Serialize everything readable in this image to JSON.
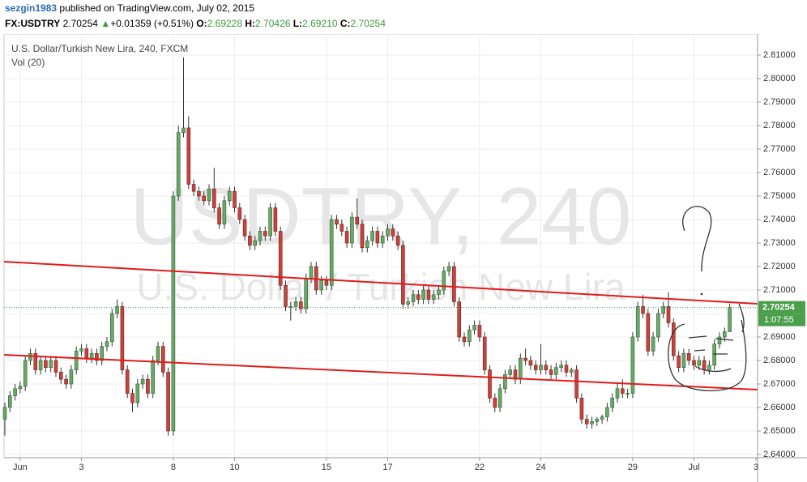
{
  "header": {
    "user": "sezgin1983",
    "published": "published on TradingView.com, July 02, 2015",
    "symbol": "FX:USDTRY",
    "last": "2.70254",
    "arrow": "▲",
    "change": "+0.01359 (+0.51%)",
    "o_label": "O:",
    "o": "2.69228",
    "h_label": "H:",
    "h": "2.70426",
    "l_label": "L:",
    "l": "2.69210",
    "c_label": "C:",
    "c": "2.70254"
  },
  "chart_data": {
    "type": "candlestick",
    "title": "U.S. Dollar/Turkish New Lira, 240, FXCM",
    "subtitle": "Vol (20)",
    "watermark": "USDTRY, 240",
    "watermark_sub": "U.S. Dollar / Turkish New Lira",
    "price_label": "2.70254",
    "countdown": "1:07:55",
    "up_color": "#6aa86a",
    "down_color": "#c9433e",
    "ylim": [
      2.63862,
      2.81897
    ],
    "yticks": [
      {
        "value": 2.64,
        "label": "2.64000"
      },
      {
        "value": 2.65,
        "label": "2.65000"
      },
      {
        "value": 2.66,
        "label": "2.66000"
      },
      {
        "value": 2.67,
        "label": "2.67000"
      },
      {
        "value": 2.68,
        "label": "2.68000"
      },
      {
        "value": 2.69,
        "label": "2.69000"
      },
      {
        "value": 2.7,
        "label": "2.70000"
      },
      {
        "value": 2.71,
        "label": "2.71000"
      },
      {
        "value": 2.72,
        "label": "2.72000"
      },
      {
        "value": 2.73,
        "label": "2.73000"
      },
      {
        "value": 2.74,
        "label": "2.74000"
      },
      {
        "value": 2.75,
        "label": "2.75000"
      },
      {
        "value": 2.76,
        "label": "2.76000"
      },
      {
        "value": 2.77,
        "label": "2.77000"
      },
      {
        "value": 2.78,
        "label": "2.78000"
      },
      {
        "value": 2.79,
        "label": "2.79000"
      },
      {
        "value": 2.8,
        "label": "2.80000"
      },
      {
        "value": 2.81,
        "label": "2.81000"
      }
    ],
    "xticks": [
      {
        "value": 3,
        "label": "Jun"
      },
      {
        "value": 15,
        "label": "3"
      },
      {
        "value": 33,
        "label": "8"
      },
      {
        "value": 45,
        "label": "10"
      },
      {
        "value": 63,
        "label": "15"
      },
      {
        "value": 75,
        "label": "17"
      },
      {
        "value": 93,
        "label": "22"
      },
      {
        "value": 105,
        "label": "24"
      },
      {
        "value": 123,
        "label": "29"
      },
      {
        "value": 135,
        "label": "Jul"
      },
      {
        "value": 149,
        "label": "3"
      }
    ],
    "grid": true,
    "open": [
      2.655,
      2.66,
      2.665,
      2.668,
      2.669,
      2.68,
      2.683,
      2.676,
      2.68,
      2.677,
      2.68,
      2.675,
      2.672,
      2.67,
      2.676,
      2.684,
      2.685,
      2.681,
      2.683,
      2.68,
      2.686,
      2.688,
      2.7,
      2.703,
      2.676,
      2.666,
      2.662,
      2.67,
      2.672,
      2.666,
      2.68,
      2.686,
      2.675,
      2.65,
      2.75,
      2.777,
      2.779,
      2.755,
      2.752,
      2.75,
      2.748,
      2.753,
      2.745,
      2.738,
      2.748,
      2.752,
      2.745,
      2.74,
      2.733,
      2.729,
      2.731,
      2.735,
      2.733,
      2.745,
      2.735,
      2.712,
      2.703,
      2.703,
      2.705,
      2.702,
      2.715,
      2.72,
      2.71,
      2.714,
      2.712,
      2.74,
      2.738,
      2.735,
      2.73,
      2.741,
      2.738,
      2.728,
      2.731,
      2.735,
      2.73,
      2.733,
      2.736,
      2.733,
      2.729,
      2.704,
      2.705,
      2.708,
      2.706,
      2.71,
      2.706,
      2.708,
      2.71,
      2.718,
      2.72,
      2.705,
      2.69,
      2.688,
      2.693,
      2.695,
      2.69,
      2.676,
      2.664,
      2.66,
      2.668,
      2.674,
      2.676,
      2.672,
      2.681,
      2.68,
      2.678,
      2.676,
      2.678,
      2.676,
      2.674,
      2.677,
      2.678,
      2.675,
      2.676,
      2.664,
      2.655,
      2.653,
      2.654,
      2.655,
      2.656,
      2.66,
      2.664,
      2.668,
      2.666,
      2.666,
      2.69,
      2.703,
      2.7,
      2.684,
      2.69,
      2.7,
      2.703,
      2.696,
      2.682,
      2.677,
      2.683,
      2.68,
      2.678,
      2.68,
      2.676,
      2.678,
      2.687,
      2.69,
      2.69228
    ],
    "high": [
      2.662,
      2.667,
      2.67,
      2.671,
      2.682,
      2.685,
      2.685,
      2.682,
      2.682,
      2.682,
      2.682,
      2.677,
      2.674,
      2.678,
      2.686,
      2.687,
      2.687,
      2.685,
      2.685,
      2.688,
      2.69,
      2.702,
      2.706,
      2.705,
      2.678,
      2.668,
      2.672,
      2.674,
      2.674,
      2.682,
      2.688,
      2.688,
      2.677,
      2.752,
      2.78,
      2.809,
      2.784,
      2.757,
      2.754,
      2.752,
      2.755,
      2.762,
      2.747,
      2.75,
      2.754,
      2.754,
      2.747,
      2.742,
      2.735,
      2.733,
      2.737,
      2.737,
      2.747,
      2.747,
      2.737,
      2.714,
      2.705,
      2.707,
      2.707,
      2.717,
      2.722,
      2.722,
      2.716,
      2.716,
      2.742,
      2.742,
      2.74,
      2.737,
      2.743,
      2.749,
      2.74,
      2.733,
      2.737,
      2.737,
      2.735,
      2.738,
      2.738,
      2.735,
      2.731,
      2.707,
      2.71,
      2.71,
      2.712,
      2.712,
      2.71,
      2.712,
      2.72,
      2.722,
      2.722,
      2.707,
      2.692,
      2.695,
      2.697,
      2.697,
      2.692,
      2.678,
      2.666,
      2.67,
      2.676,
      2.678,
      2.678,
      2.683,
      2.685,
      2.682,
      2.68,
      2.687,
      2.68,
      2.678,
      2.679,
      2.68,
      2.68,
      2.677,
      2.678,
      2.666,
      2.657,
      2.656,
      2.656,
      2.657,
      2.662,
      2.666,
      2.67,
      2.672,
      2.668,
      2.692,
      2.705,
      2.708,
      2.702,
      2.692,
      2.702,
      2.705,
      2.709,
      2.698,
      2.684,
      2.685,
      2.685,
      2.682,
      2.682,
      2.682,
      2.68,
      2.689,
      2.692,
      2.694,
      2.70426
    ],
    "low": [
      2.648,
      2.658,
      2.663,
      2.666,
      2.667,
      2.678,
      2.674,
      2.674,
      2.675,
      2.675,
      2.673,
      2.67,
      2.668,
      2.668,
      2.674,
      2.682,
      2.679,
      2.679,
      2.678,
      2.678,
      2.684,
      2.686,
      2.698,
      2.674,
      2.664,
      2.658,
      2.66,
      2.668,
      2.664,
      2.664,
      2.678,
      2.673,
      2.648,
      2.648,
      2.748,
      2.775,
      2.753,
      2.75,
      2.748,
      2.746,
      2.746,
      2.743,
      2.736,
      2.736,
      2.746,
      2.743,
      2.738,
      2.731,
      2.727,
      2.727,
      2.729,
      2.731,
      2.731,
      2.733,
      2.71,
      2.701,
      2.697,
      2.701,
      2.7,
      2.7,
      2.713,
      2.708,
      2.708,
      2.71,
      2.71,
      2.736,
      2.733,
      2.728,
      2.728,
      2.736,
      2.726,
      2.726,
      2.729,
      2.728,
      2.728,
      2.731,
      2.731,
      2.727,
      2.702,
      2.702,
      2.703,
      2.704,
      2.704,
      2.704,
      2.704,
      2.706,
      2.708,
      2.716,
      2.703,
      2.688,
      2.686,
      2.686,
      2.691,
      2.688,
      2.674,
      2.662,
      2.658,
      2.658,
      2.666,
      2.672,
      2.67,
      2.67,
      2.678,
      2.676,
      2.674,
      2.674,
      2.674,
      2.672,
      2.672,
      2.675,
      2.673,
      2.673,
      2.662,
      2.653,
      2.651,
      2.651,
      2.652,
      2.653,
      2.654,
      2.658,
      2.662,
      2.664,
      2.664,
      2.664,
      2.688,
      2.698,
      2.682,
      2.682,
      2.688,
      2.698,
      2.694,
      2.68,
      2.675,
      2.675,
      2.678,
      2.676,
      2.676,
      2.674,
      2.674,
      2.676,
      2.685,
      2.688,
      2.6921
    ],
    "close": [
      2.66,
      2.665,
      2.668,
      2.669,
      2.68,
      2.683,
      2.676,
      2.68,
      2.677,
      2.68,
      2.675,
      2.672,
      2.67,
      2.676,
      2.684,
      2.685,
      2.681,
      2.683,
      2.68,
      2.686,
      2.688,
      2.7,
      2.703,
      2.676,
      2.666,
      2.662,
      2.67,
      2.672,
      2.666,
      2.68,
      2.686,
      2.675,
      2.65,
      2.75,
      2.777,
      2.779,
      2.755,
      2.752,
      2.75,
      2.748,
      2.753,
      2.745,
      2.738,
      2.748,
      2.752,
      2.745,
      2.74,
      2.733,
      2.729,
      2.731,
      2.735,
      2.733,
      2.745,
      2.735,
      2.712,
      2.703,
      2.703,
      2.705,
      2.702,
      2.715,
      2.72,
      2.71,
      2.714,
      2.712,
      2.74,
      2.738,
      2.735,
      2.73,
      2.741,
      2.738,
      2.728,
      2.731,
      2.735,
      2.73,
      2.733,
      2.736,
      2.733,
      2.729,
      2.704,
      2.705,
      2.708,
      2.706,
      2.71,
      2.706,
      2.708,
      2.71,
      2.718,
      2.72,
      2.705,
      2.69,
      2.688,
      2.693,
      2.695,
      2.69,
      2.676,
      2.664,
      2.66,
      2.668,
      2.674,
      2.676,
      2.672,
      2.681,
      2.68,
      2.678,
      2.676,
      2.678,
      2.676,
      2.674,
      2.677,
      2.678,
      2.675,
      2.676,
      2.664,
      2.655,
      2.653,
      2.654,
      2.655,
      2.656,
      2.66,
      2.664,
      2.668,
      2.666,
      2.666,
      2.69,
      2.703,
      2.7,
      2.684,
      2.69,
      2.7,
      2.703,
      2.696,
      2.682,
      2.677,
      2.683,
      2.68,
      2.678,
      2.68,
      2.676,
      2.678,
      2.687,
      2.69,
      2.69228,
      2.70254
    ]
  }
}
